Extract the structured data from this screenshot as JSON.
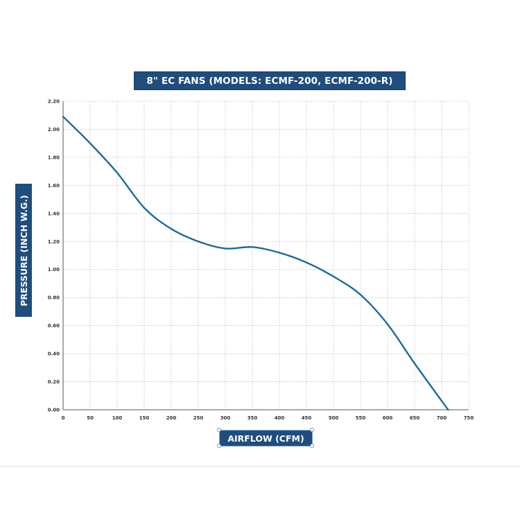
{
  "chart_data": {
    "type": "line",
    "title": "8\" EC FANS (MODELS: ECMF-200, ECMF-200-R)",
    "xlabel": "AIRFLOW (CFM)",
    "ylabel": "PRESSURE (INCH W.G.)",
    "xlim": [
      0,
      750
    ],
    "ylim": [
      0,
      2.2
    ],
    "x_ticks": [
      "0",
      "50",
      "100",
      "150",
      "200",
      "250",
      "300",
      "350",
      "400",
      "450",
      "500",
      "550",
      "600",
      "650",
      "700",
      "750"
    ],
    "y_ticks": [
      "0.00",
      "0.20",
      "0.40",
      "0.60",
      "0.80",
      "1.00",
      "1.20",
      "1.40",
      "1.60",
      "1.80",
      "2.00",
      "2.20"
    ],
    "grid": true,
    "series": [
      {
        "color": "#1d6a9a",
        "points": [
          [
            0,
            2.09
          ],
          [
            50,
            1.9
          ],
          [
            100,
            1.69
          ],
          [
            150,
            1.44
          ],
          [
            200,
            1.29
          ],
          [
            250,
            1.2
          ],
          [
            300,
            1.15
          ],
          [
            350,
            1.16
          ],
          [
            400,
            1.12
          ],
          [
            450,
            1.05
          ],
          [
            500,
            0.95
          ],
          [
            550,
            0.82
          ],
          [
            600,
            0.61
          ],
          [
            650,
            0.33
          ],
          [
            712,
            0.0
          ]
        ]
      }
    ]
  }
}
